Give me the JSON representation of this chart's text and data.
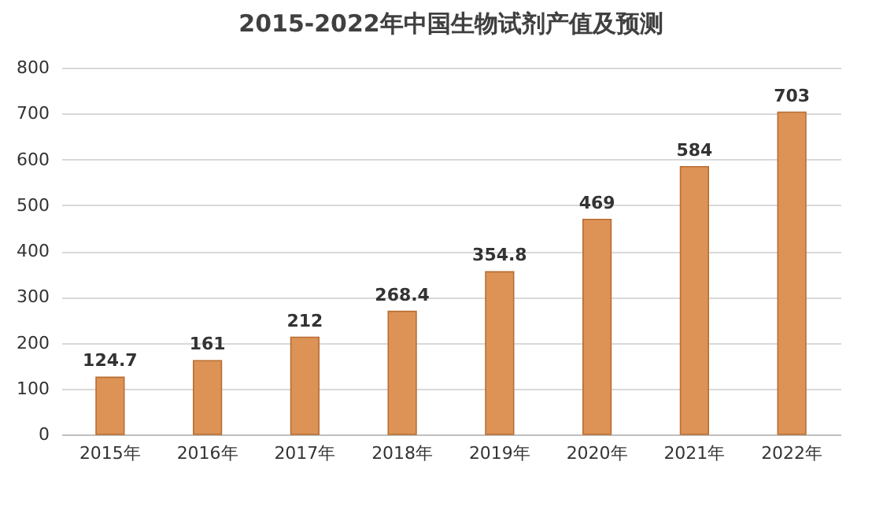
{
  "chart_data": {
    "type": "bar",
    "title": "2015-2022年中国生物试剂产值及预测",
    "categories": [
      "2015年",
      "2016年",
      "2017年",
      "2018年",
      "2019年",
      "2020年",
      "2021年",
      "2022年"
    ],
    "values": [
      124.7,
      161,
      212,
      268.4,
      354.8,
      469,
      584,
      703
    ],
    "color": "#dc9355",
    "ylim": [
      0,
      800
    ],
    "yticks": [
      0,
      100,
      200,
      300,
      400,
      500,
      600,
      700,
      800
    ],
    "grid": "y",
    "data_labels": true
  }
}
